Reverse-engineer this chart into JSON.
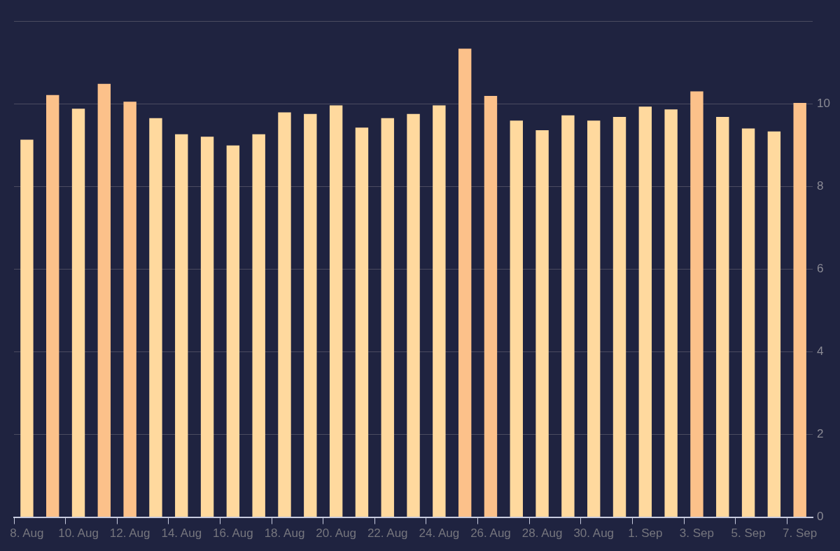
{
  "chart_data": {
    "type": "bar",
    "categories": [
      "8. Aug",
      null,
      "10. Aug",
      null,
      "12. Aug",
      null,
      "14. Aug",
      null,
      "16. Aug",
      null,
      "18. Aug",
      null,
      "20. Aug",
      null,
      "22. Aug",
      null,
      "24. Aug",
      null,
      "26. Aug",
      null,
      "28. Aug",
      null,
      "30. Aug",
      null,
      "1. Sep",
      null,
      "3. Sep",
      null,
      "5. Sep",
      null,
      "7. Sep"
    ],
    "values": [
      9.13,
      10.21,
      9.88,
      10.48,
      10.05,
      9.65,
      9.26,
      9.2,
      8.99,
      9.26,
      9.79,
      9.75,
      9.96,
      9.42,
      9.65,
      9.75,
      9.96,
      11.33,
      10.19,
      9.59,
      9.36,
      9.72,
      9.59,
      9.68,
      9.93,
      9.86,
      10.3,
      9.68,
      9.4,
      9.33,
      10.02
    ],
    "colors": [
      "#ffd99e",
      "#fcc18a",
      "#ffd99e",
      "#fcc18a",
      "#fcc18a",
      "#ffd99e",
      "#ffd99e",
      "#ffd99e",
      "#ffd99e",
      "#ffd99e",
      "#ffd99e",
      "#ffd99e",
      "#ffd99e",
      "#ffd99e",
      "#ffd99e",
      "#ffd99e",
      "#ffd99e",
      "#fcc18a",
      "#fcc18a",
      "#ffd99e",
      "#ffd99e",
      "#ffd99e",
      "#ffd99e",
      "#ffd99e",
      "#ffd99e",
      "#ffd99e",
      "#fcc18a",
      "#ffd99e",
      "#ffd99e",
      "#ffd99e",
      "#fcc18a"
    ],
    "ylim": [
      0,
      12
    ],
    "yticks": [
      0,
      2,
      4,
      6,
      8,
      10,
      {
        "value": 12,
        "label": null
      }
    ],
    "grid": "y"
  }
}
